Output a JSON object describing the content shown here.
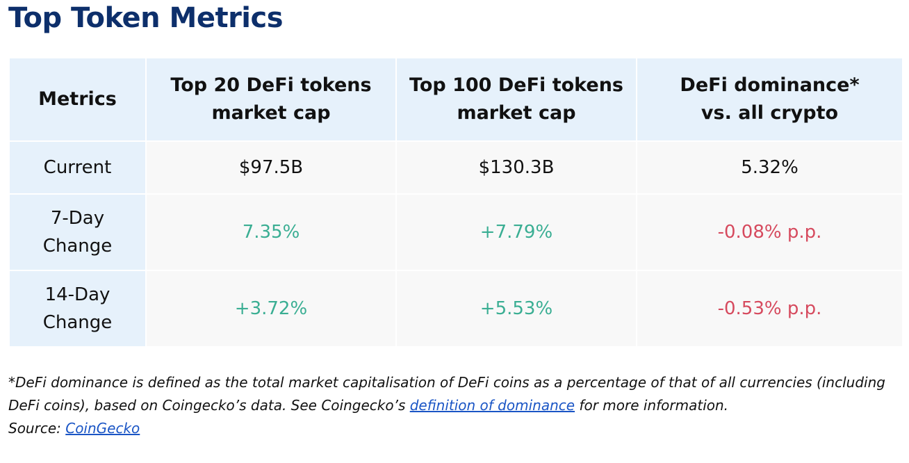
{
  "title": "Top Token Metrics",
  "table": {
    "headers": [
      [
        "Metrics"
      ],
      [
        "Top 20 DeFi tokens",
        "market cap"
      ],
      [
        "Top 100 DeFi tokens",
        "market cap"
      ],
      [
        "DeFi dominance*",
        "vs. all crypto"
      ]
    ],
    "rows": [
      {
        "label": [
          "Current"
        ],
        "values": [
          "$97.5B",
          "$130.3B",
          "5.32%"
        ]
      },
      {
        "label": [
          "7-Day",
          "Change"
        ],
        "values": [
          "7.35%",
          "+7.79%",
          "-0.08% p.p."
        ]
      },
      {
        "label": [
          "14-Day",
          "Change"
        ],
        "values": [
          "+3.72%",
          "+5.53%",
          "-0.53% p.p."
        ]
      }
    ]
  },
  "colors": {
    "title": "#0d2f6b",
    "header_bg": "#e6f1fb",
    "positive": "#3aae93",
    "negative": "#d64a5e",
    "link": "#1a55c5"
  },
  "footnote": {
    "text_before": "*DeFi dominance is defined as the total market capitalisation of DeFi coins as a percentage of that of all currencies (including DeFi coins), based on Coingecko’s data. See Coingecko’s ",
    "link_text": "definition of dominance",
    "text_after": " for more information.",
    "source_label": "Source: ",
    "source_link": "CoinGecko"
  }
}
